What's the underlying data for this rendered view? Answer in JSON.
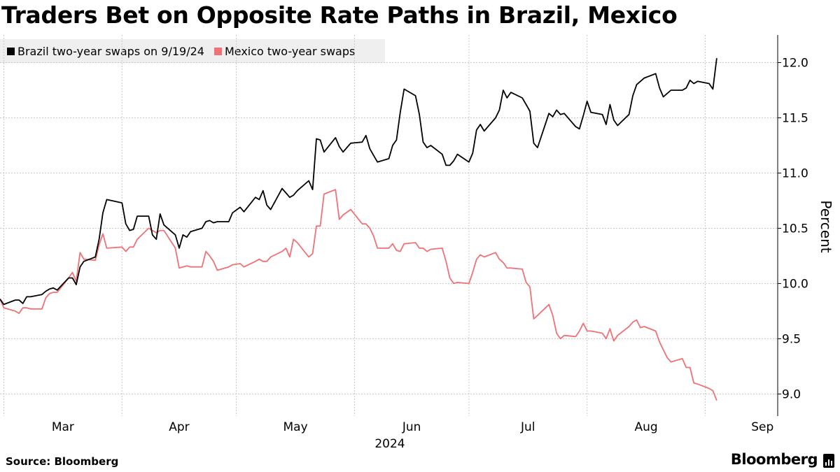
{
  "title": "Traders Bet on Opposite Rate Paths in Brazil, Mexico",
  "source": "Source: Bloomberg",
  "brand": "Bloomberg",
  "brand_icon": "bloomberg-terminal-icon",
  "chart_data": {
    "type": "line",
    "title": "Traders Bet on Opposite Rate Paths in Brazil, Mexico",
    "ylabel": "Percent",
    "xlabel": "2024",
    "ylim": [
      8.8,
      12.25
    ],
    "yticks": [
      9.0,
      9.5,
      10.0,
      10.5,
      11.0,
      11.5,
      12.0
    ],
    "ytick_labels": [
      "9.0",
      "9.5",
      "10.0",
      "10.5",
      "11.0",
      "11.5",
      "12.0"
    ],
    "x_range": [
      "2024-02-29",
      "2024-09-20"
    ],
    "xticks": [
      "2024-03-01",
      "2024-04-01",
      "2024-05-01",
      "2024-06-01",
      "2024-07-01",
      "2024-08-01",
      "2024-09-01"
    ],
    "xtick_labels": [
      "Mar",
      "Apr",
      "May",
      "Jun",
      "Jul",
      "Aug",
      "Sep"
    ],
    "grid": true,
    "legend_position": "top-left",
    "series": [
      {
        "name": "Brazil two-year swaps on 9/19/24",
        "color": "#000000",
        "points": [
          [
            "2024-02-29",
            9.86
          ],
          [
            "2024-03-01",
            9.81
          ],
          [
            "2024-03-04",
            9.85
          ],
          [
            "2024-03-05",
            9.85
          ],
          [
            "2024-03-06",
            9.82
          ],
          [
            "2024-03-07",
            9.88
          ],
          [
            "2024-03-08",
            9.88
          ],
          [
            "2024-03-11",
            9.9
          ],
          [
            "2024-03-12",
            9.93
          ],
          [
            "2024-03-13",
            9.95
          ],
          [
            "2024-03-14",
            9.96
          ],
          [
            "2024-03-15",
            9.94
          ],
          [
            "2024-03-18",
            10.05
          ],
          [
            "2024-03-19",
            10.05
          ],
          [
            "2024-03-20",
            9.99
          ],
          [
            "2024-03-21",
            10.15
          ],
          [
            "2024-03-22",
            10.2
          ],
          [
            "2024-03-25",
            10.24
          ],
          [
            "2024-03-26",
            10.4
          ],
          [
            "2024-03-27",
            10.64
          ],
          [
            "2024-03-28",
            10.76
          ],
          [
            "2024-04-01",
            10.73
          ],
          [
            "2024-04-02",
            10.54
          ],
          [
            "2024-04-03",
            10.48
          ],
          [
            "2024-04-04",
            10.49
          ],
          [
            "2024-04-05",
            10.61
          ],
          [
            "2024-04-08",
            10.61
          ],
          [
            "2024-04-09",
            10.44
          ],
          [
            "2024-04-10",
            10.4
          ],
          [
            "2024-04-11",
            10.63
          ],
          [
            "2024-04-12",
            10.53
          ],
          [
            "2024-04-15",
            10.44
          ],
          [
            "2024-04-16",
            10.32
          ],
          [
            "2024-04-17",
            10.44
          ],
          [
            "2024-04-18",
            10.42
          ],
          [
            "2024-04-19",
            10.47
          ],
          [
            "2024-04-22",
            10.5
          ],
          [
            "2024-04-23",
            10.56
          ],
          [
            "2024-04-24",
            10.57
          ],
          [
            "2024-04-25",
            10.55
          ],
          [
            "2024-04-26",
            10.56
          ],
          [
            "2024-04-29",
            10.56
          ],
          [
            "2024-04-30",
            10.64
          ],
          [
            "2024-05-02",
            10.69
          ],
          [
            "2024-05-03",
            10.65
          ],
          [
            "2024-05-06",
            10.78
          ],
          [
            "2024-05-07",
            10.76
          ],
          [
            "2024-05-08",
            10.84
          ],
          [
            "2024-05-09",
            10.71
          ],
          [
            "2024-05-10",
            10.67
          ],
          [
            "2024-05-13",
            10.86
          ],
          [
            "2024-05-14",
            10.82
          ],
          [
            "2024-05-15",
            10.78
          ],
          [
            "2024-05-16",
            10.8
          ],
          [
            "2024-05-17",
            10.84
          ],
          [
            "2024-05-20",
            10.93
          ],
          [
            "2024-05-21",
            10.85
          ],
          [
            "2024-05-22",
            11.31
          ],
          [
            "2024-05-23",
            11.3
          ],
          [
            "2024-05-24",
            11.19
          ],
          [
            "2024-05-27",
            11.32
          ],
          [
            "2024-05-28",
            11.24
          ],
          [
            "2024-05-29",
            11.19
          ],
          [
            "2024-05-31",
            11.27
          ],
          [
            "2024-06-03",
            11.28
          ],
          [
            "2024-06-04",
            11.34
          ],
          [
            "2024-06-05",
            11.22
          ],
          [
            "2024-06-06",
            11.16
          ],
          [
            "2024-06-07",
            11.1
          ],
          [
            "2024-06-10",
            11.13
          ],
          [
            "2024-06-11",
            11.25
          ],
          [
            "2024-06-12",
            11.3
          ],
          [
            "2024-06-13",
            11.55
          ],
          [
            "2024-06-14",
            11.76
          ],
          [
            "2024-06-17",
            11.7
          ],
          [
            "2024-06-18",
            11.53
          ],
          [
            "2024-06-19",
            11.28
          ],
          [
            "2024-06-20",
            11.23
          ],
          [
            "2024-06-21",
            11.25
          ],
          [
            "2024-06-24",
            11.17
          ],
          [
            "2024-06-25",
            11.07
          ],
          [
            "2024-06-26",
            11.07
          ],
          [
            "2024-06-27",
            11.11
          ],
          [
            "2024-06-28",
            11.17
          ],
          [
            "2024-07-01",
            11.1
          ],
          [
            "2024-07-02",
            11.18
          ],
          [
            "2024-07-03",
            11.39
          ],
          [
            "2024-07-04",
            11.44
          ],
          [
            "2024-07-05",
            11.38
          ],
          [
            "2024-07-08",
            11.5
          ],
          [
            "2024-07-09",
            11.57
          ],
          [
            "2024-07-10",
            11.75
          ],
          [
            "2024-07-11",
            11.68
          ],
          [
            "2024-07-12",
            11.73
          ],
          [
            "2024-07-15",
            11.68
          ],
          [
            "2024-07-16",
            11.62
          ],
          [
            "2024-07-17",
            11.56
          ],
          [
            "2024-07-18",
            11.27
          ],
          [
            "2024-07-19",
            11.23
          ],
          [
            "2024-07-22",
            11.54
          ],
          [
            "2024-07-23",
            11.51
          ],
          [
            "2024-07-24",
            11.57
          ],
          [
            "2024-07-25",
            11.53
          ],
          [
            "2024-07-26",
            11.54
          ],
          [
            "2024-07-29",
            11.42
          ],
          [
            "2024-07-30",
            11.4
          ],
          [
            "2024-07-31",
            11.52
          ],
          [
            "2024-08-01",
            11.65
          ],
          [
            "2024-08-02",
            11.55
          ],
          [
            "2024-08-05",
            11.53
          ],
          [
            "2024-08-06",
            11.44
          ],
          [
            "2024-08-07",
            11.62
          ],
          [
            "2024-08-08",
            11.48
          ],
          [
            "2024-08-09",
            11.43
          ],
          [
            "2024-08-12",
            11.53
          ],
          [
            "2024-08-13",
            11.7
          ],
          [
            "2024-08-14",
            11.8
          ],
          [
            "2024-08-15",
            11.83
          ],
          [
            "2024-08-16",
            11.86
          ],
          [
            "2024-08-19",
            11.9
          ],
          [
            "2024-08-20",
            11.77
          ],
          [
            "2024-08-21",
            11.69
          ],
          [
            "2024-08-22",
            11.72
          ],
          [
            "2024-08-23",
            11.75
          ],
          [
            "2024-08-26",
            11.75
          ],
          [
            "2024-08-27",
            11.77
          ],
          [
            "2024-08-28",
            11.84
          ],
          [
            "2024-08-29",
            11.81
          ],
          [
            "2024-08-30",
            11.83
          ],
          [
            "2024-09-02",
            11.81
          ],
          [
            "2024-09-03",
            11.76
          ],
          [
            "2024-09-04",
            12.04
          ]
        ]
      },
      {
        "name": "Mexico two-year swaps",
        "color": "#f07176",
        "points": [
          [
            "2024-02-29",
            9.86
          ],
          [
            "2024-03-01",
            9.78
          ],
          [
            "2024-03-04",
            9.75
          ],
          [
            "2024-03-05",
            9.73
          ],
          [
            "2024-03-06",
            9.78
          ],
          [
            "2024-03-07",
            9.78
          ],
          [
            "2024-03-08",
            9.77
          ],
          [
            "2024-03-11",
            9.77
          ],
          [
            "2024-03-12",
            9.87
          ],
          [
            "2024-03-13",
            9.91
          ],
          [
            "2024-03-14",
            9.92
          ],
          [
            "2024-03-15",
            9.92
          ],
          [
            "2024-03-18",
            10.05
          ],
          [
            "2024-03-19",
            10.1
          ],
          [
            "2024-03-20",
            10.02
          ],
          [
            "2024-03-21",
            10.28
          ],
          [
            "2024-03-22",
            10.22
          ],
          [
            "2024-03-25",
            10.21
          ],
          [
            "2024-03-26",
            10.35
          ],
          [
            "2024-03-27",
            10.45
          ],
          [
            "2024-03-28",
            10.32
          ],
          [
            "2024-04-01",
            10.33
          ],
          [
            "2024-04-02",
            10.29
          ],
          [
            "2024-04-03",
            10.33
          ],
          [
            "2024-04-04",
            10.33
          ],
          [
            "2024-04-05",
            10.4
          ],
          [
            "2024-04-08",
            10.5
          ],
          [
            "2024-04-09",
            10.48
          ],
          [
            "2024-04-10",
            10.46
          ],
          [
            "2024-04-11",
            10.48
          ],
          [
            "2024-04-12",
            10.48
          ],
          [
            "2024-04-15",
            10.32
          ],
          [
            "2024-04-16",
            10.14
          ],
          [
            "2024-04-17",
            10.15
          ],
          [
            "2024-04-18",
            10.16
          ],
          [
            "2024-04-19",
            10.15
          ],
          [
            "2024-04-22",
            10.15
          ],
          [
            "2024-04-23",
            10.29
          ],
          [
            "2024-04-24",
            10.25
          ],
          [
            "2024-04-25",
            10.2
          ],
          [
            "2024-04-26",
            10.12
          ],
          [
            "2024-04-29",
            10.15
          ],
          [
            "2024-04-30",
            10.17
          ],
          [
            "2024-05-02",
            10.18
          ],
          [
            "2024-05-03",
            10.15
          ],
          [
            "2024-05-06",
            10.2
          ],
          [
            "2024-05-07",
            10.22
          ],
          [
            "2024-05-08",
            10.2
          ],
          [
            "2024-05-09",
            10.2
          ],
          [
            "2024-05-10",
            10.24
          ],
          [
            "2024-05-13",
            10.29
          ],
          [
            "2024-05-14",
            10.32
          ],
          [
            "2024-05-15",
            10.24
          ],
          [
            "2024-05-16",
            10.4
          ],
          [
            "2024-05-17",
            10.37
          ],
          [
            "2024-05-20",
            10.24
          ],
          [
            "2024-05-21",
            10.27
          ],
          [
            "2024-05-22",
            10.52
          ],
          [
            "2024-05-23",
            10.52
          ],
          [
            "2024-05-24",
            10.81
          ],
          [
            "2024-05-27",
            10.85
          ],
          [
            "2024-05-28",
            10.58
          ],
          [
            "2024-05-29",
            10.62
          ],
          [
            "2024-05-31",
            10.67
          ],
          [
            "2024-06-03",
            10.54
          ],
          [
            "2024-06-04",
            10.54
          ],
          [
            "2024-06-05",
            10.5
          ],
          [
            "2024-06-06",
            10.43
          ],
          [
            "2024-06-07",
            10.32
          ],
          [
            "2024-06-10",
            10.32
          ],
          [
            "2024-06-11",
            10.36
          ],
          [
            "2024-06-12",
            10.3
          ],
          [
            "2024-06-13",
            10.29
          ],
          [
            "2024-06-14",
            10.36
          ],
          [
            "2024-06-17",
            10.37
          ],
          [
            "2024-06-18",
            10.32
          ],
          [
            "2024-06-19",
            10.32
          ],
          [
            "2024-06-20",
            10.29
          ],
          [
            "2024-06-21",
            10.31
          ],
          [
            "2024-06-24",
            10.32
          ],
          [
            "2024-06-25",
            10.2
          ],
          [
            "2024-06-26",
            10.05
          ],
          [
            "2024-06-27",
            10.0
          ],
          [
            "2024-06-28",
            10.01
          ],
          [
            "2024-07-01",
            10.0
          ],
          [
            "2024-07-02",
            10.1
          ],
          [
            "2024-07-03",
            10.22
          ],
          [
            "2024-07-04",
            10.26
          ],
          [
            "2024-07-05",
            10.24
          ],
          [
            "2024-07-08",
            10.28
          ],
          [
            "2024-07-09",
            10.22
          ],
          [
            "2024-07-10",
            10.19
          ],
          [
            "2024-07-11",
            10.14
          ],
          [
            "2024-07-12",
            10.14
          ],
          [
            "2024-07-15",
            10.13
          ],
          [
            "2024-07-16",
            10.01
          ],
          [
            "2024-07-17",
            9.97
          ],
          [
            "2024-07-18",
            9.68
          ],
          [
            "2024-07-19",
            9.71
          ],
          [
            "2024-07-22",
            9.81
          ],
          [
            "2024-07-23",
            9.71
          ],
          [
            "2024-07-24",
            9.55
          ],
          [
            "2024-07-25",
            9.5
          ],
          [
            "2024-07-26",
            9.53
          ],
          [
            "2024-07-29",
            9.52
          ],
          [
            "2024-07-30",
            9.57
          ],
          [
            "2024-07-31",
            9.64
          ],
          [
            "2024-08-01",
            9.57
          ],
          [
            "2024-08-02",
            9.57
          ],
          [
            "2024-08-05",
            9.55
          ],
          [
            "2024-08-06",
            9.5
          ],
          [
            "2024-08-07",
            9.59
          ],
          [
            "2024-08-08",
            9.48
          ],
          [
            "2024-08-09",
            9.53
          ],
          [
            "2024-08-12",
            9.61
          ],
          [
            "2024-08-13",
            9.65
          ],
          [
            "2024-08-14",
            9.67
          ],
          [
            "2024-08-15",
            9.6
          ],
          [
            "2024-08-16",
            9.61
          ],
          [
            "2024-08-19",
            9.57
          ],
          [
            "2024-08-20",
            9.47
          ],
          [
            "2024-08-21",
            9.4
          ],
          [
            "2024-08-22",
            9.33
          ],
          [
            "2024-08-23",
            9.29
          ],
          [
            "2024-08-26",
            9.32
          ],
          [
            "2024-08-27",
            9.24
          ],
          [
            "2024-08-28",
            9.24
          ],
          [
            "2024-08-29",
            9.1
          ],
          [
            "2024-08-30",
            9.09
          ],
          [
            "2024-09-02",
            9.05
          ],
          [
            "2024-09-03",
            9.03
          ],
          [
            "2024-09-04",
            8.94
          ]
        ]
      }
    ]
  }
}
